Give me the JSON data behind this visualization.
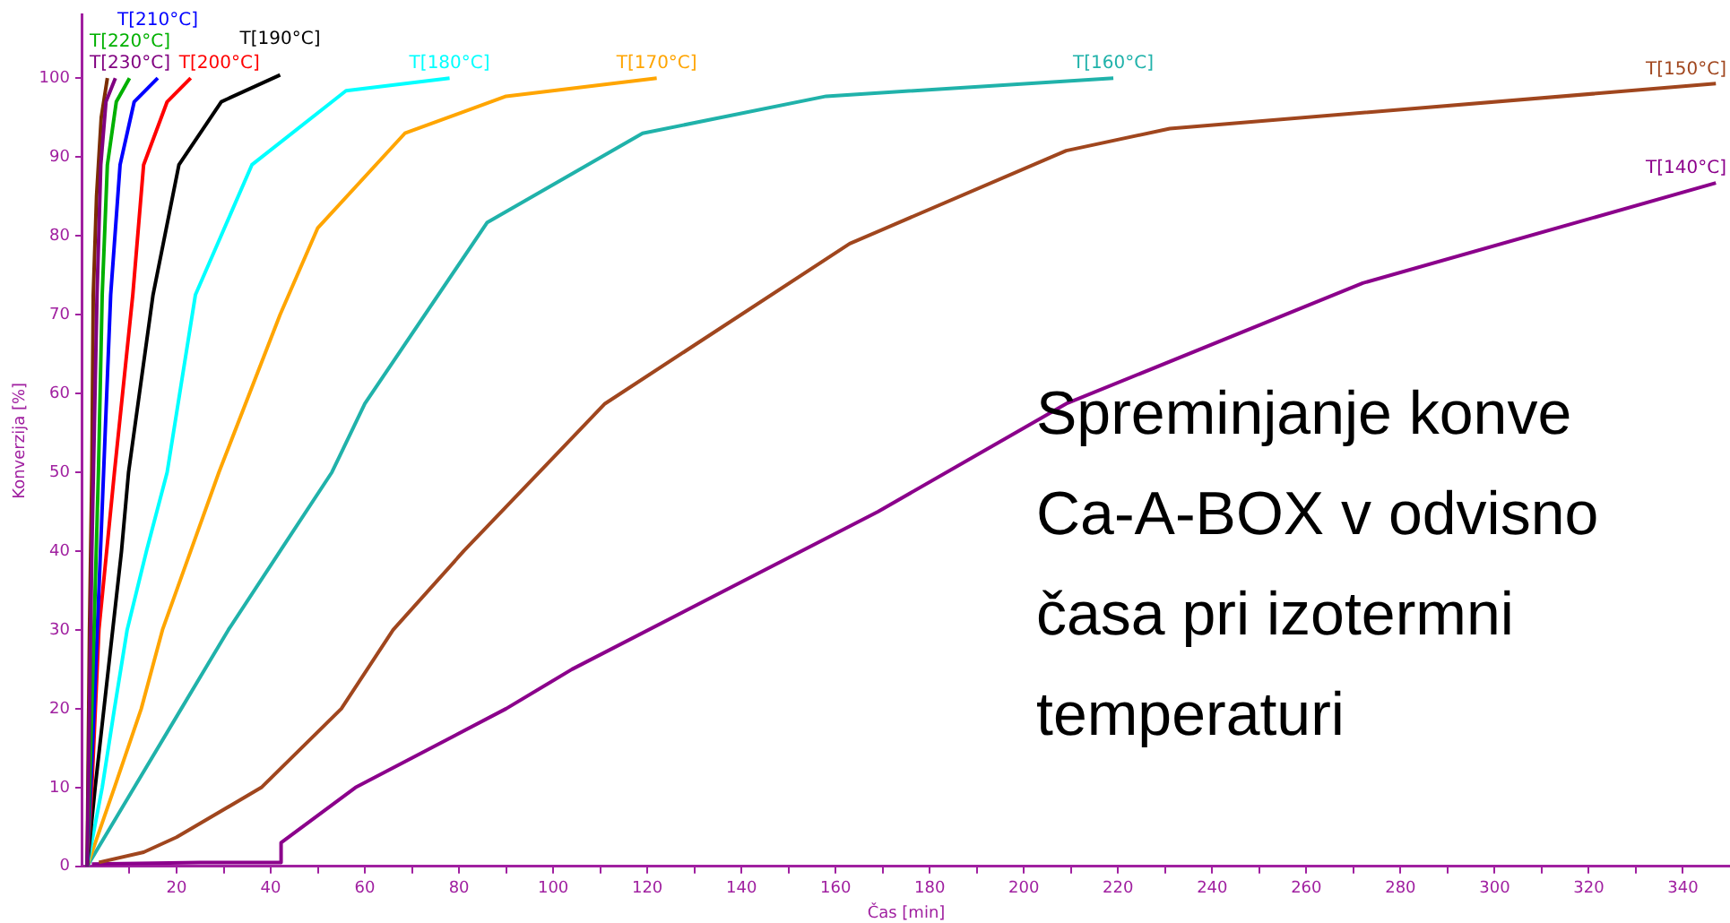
{
  "chart_data": {
    "type": "line",
    "xlabel": "Čas [min]",
    "ylabel": "Konverzija [%]",
    "xlim": [
      0,
      350
    ],
    "ylim": [
      0,
      108
    ],
    "xticks": [
      {
        "value": 10,
        "label": null
      },
      20,
      {
        "value": 30,
        "label": null
      },
      40,
      {
        "value": 50,
        "label": null
      },
      60,
      {
        "value": 70,
        "label": null
      },
      80,
      {
        "value": 90,
        "label": null
      },
      100,
      {
        "value": 110,
        "label": null
      },
      120,
      {
        "value": 130,
        "label": null
      },
      140,
      {
        "value": 150,
        "label": null
      },
      160,
      {
        "value": 170,
        "label": null
      },
      180,
      {
        "value": 190,
        "label": null
      },
      200,
      {
        "value": 210,
        "label": null
      },
      220,
      {
        "value": 230,
        "label": null
      },
      240,
      {
        "value": 250,
        "label": null
      },
      260,
      {
        "value": 270,
        "label": null
      },
      280,
      {
        "value": 290,
        "label": null
      },
      300,
      {
        "value": 310,
        "label": null
      },
      320,
      {
        "value": 330,
        "label": null
      },
      340
    ],
    "yticks": [
      0,
      10,
      20,
      30,
      40,
      50,
      60,
      70,
      80,
      90,
      100
    ],
    "grid": false,
    "legend": false,
    "marker": "none",
    "line_style": "solid",
    "series": [
      {
        "name": "T[230°C]",
        "color": "#800080",
        "x": [
          1,
          2,
          3.1,
          3.9,
          5,
          7
        ],
        "values": [
          0,
          40,
          72.5,
          89,
          97,
          100
        ]
      },
      {
        "name": "T[220°C]",
        "color": "#00b000",
        "x": [
          1,
          2,
          3.4,
          4.2,
          5.3,
          7.2,
          10
        ],
        "values": [
          0,
          20,
          50,
          72.5,
          89,
          97,
          100
        ]
      },
      {
        "name": "T[210°C]",
        "color": "#0000ff",
        "x": [
          1,
          2.5,
          4.5,
          6,
          8,
          11,
          16
        ],
        "values": [
          0,
          20,
          50,
          72.5,
          89,
          97,
          100
        ]
      },
      {
        "name": "T[200°C]",
        "color": "#ff0000",
        "x": [
          1,
          2,
          3.5,
          6.8,
          10.7,
          13,
          18,
          23
        ],
        "values": [
          0,
          10,
          30,
          50,
          72.5,
          89,
          97,
          100
        ]
      },
      {
        "name": "T[190°C]",
        "color": "#000000",
        "x": [
          1,
          2.7,
          8.3,
          9.8,
          15,
          20.5,
          29.5,
          42
        ],
        "values": [
          0,
          10,
          40,
          50,
          72.5,
          89,
          97,
          100.4
        ]
      },
      {
        "name": "T[180°C]",
        "color": "#00ffff",
        "x": [
          1,
          4.2,
          6.8,
          9.5,
          13.6,
          18,
          24,
          36,
          56,
          78
        ],
        "values": [
          0,
          10,
          20,
          30,
          40,
          50,
          72.5,
          89,
          98.4,
          100
        ]
      },
      {
        "name": "T[170°C]",
        "color": "#ffa500",
        "x": [
          1,
          6.8,
          12.5,
          17,
          23,
          29,
          42,
          50,
          68.5,
          90,
          122
        ],
        "values": [
          0,
          10,
          20,
          30,
          40,
          50,
          70,
          81,
          93,
          97.7,
          100
        ]
      },
      {
        "name": "T[160°C]",
        "color": "#20b2aa",
        "x": [
          1,
          11,
          21,
          31,
          42,
          53,
          60,
          86,
          119,
          158,
          219
        ],
        "values": [
          0,
          10,
          20,
          30,
          40,
          50,
          58.7,
          81.7,
          93,
          97.7,
          100
        ]
      },
      {
        "name": "T[150°C]",
        "color": "#a0461e",
        "x": [
          3.5,
          13,
          20,
          38,
          55,
          66,
          81,
          111,
          163,
          209,
          231,
          347
        ],
        "values": [
          0.5,
          1.8,
          3.7,
          10,
          20,
          30,
          40,
          58.7,
          79,
          90.8,
          93.6,
          99.3
        ]
      },
      {
        "name": "T[140°C]",
        "color": "#8b008b",
        "x": [
          2,
          25,
          42,
          42.2,
          58,
          90,
          104,
          169,
          209,
          272,
          347
        ],
        "values": [
          0.3,
          0.5,
          0.5,
          3,
          10,
          20,
          25,
          45,
          58.7,
          74,
          86.7
        ]
      },
      {
        "color": "#7b2c00",
        "x": [
          1,
          1.5,
          2,
          2.3,
          3,
          4,
          5.3
        ],
        "values": [
          0,
          30,
          50,
          72.5,
          85,
          95,
          100
        ]
      }
    ],
    "annotations": [
      "Spreminjanje konve",
      "Ca-A-BOX  v odvisno",
      "časa pri izotermni",
      "temperaturi"
    ]
  }
}
